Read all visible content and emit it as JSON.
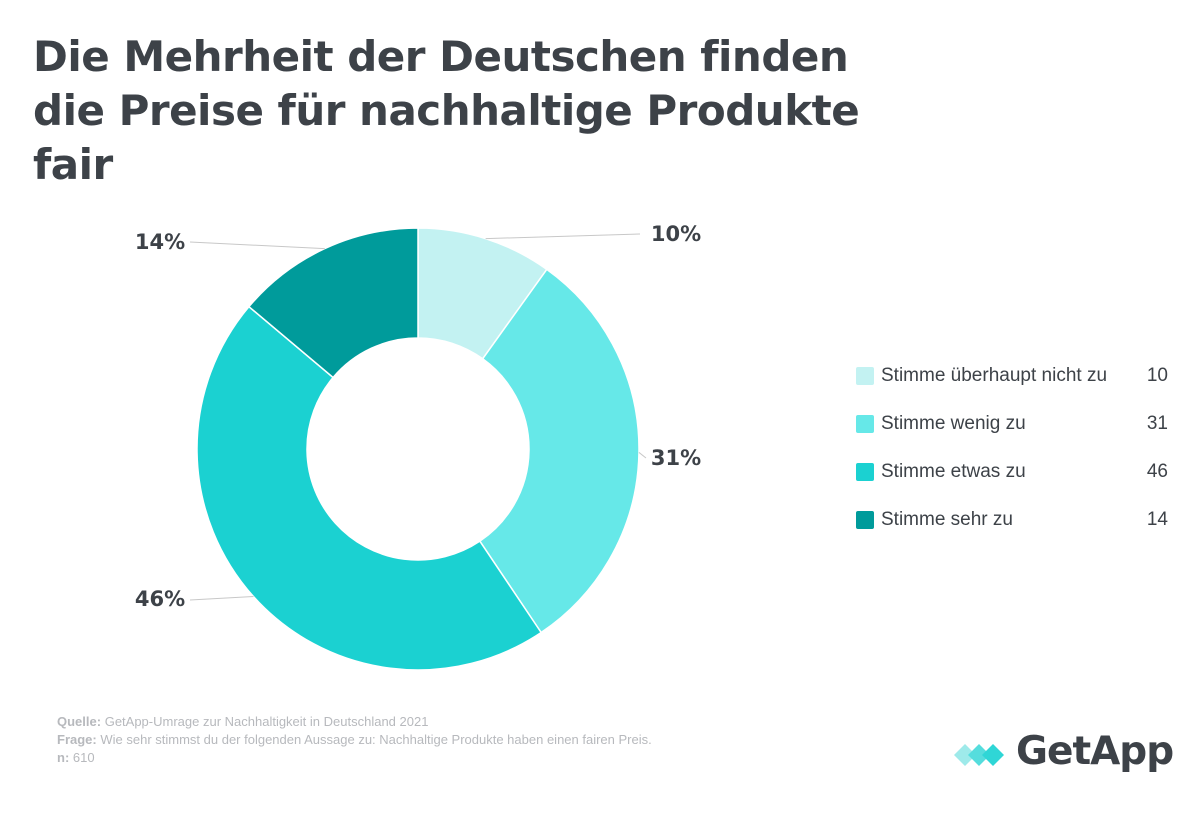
{
  "title": "Die Mehrheit der Deutschen finden die Preise für nachhaltige Produkte fair",
  "chart_data": {
    "type": "donut",
    "title": "Die Mehrheit der Deutschen finden die Preise für nachhaltige Produkte fair",
    "unit": "%",
    "series": [
      {
        "name": "Stimme überhaupt nicht zu",
        "value": 10,
        "label": "10%",
        "color": "#c3f2f2"
      },
      {
        "name": "Stimme wenig zu",
        "value": 31,
        "label": "31%",
        "color": "#66e8e8"
      },
      {
        "name": "Stimme etwas zu",
        "value": 46,
        "label": "46%",
        "color": "#1bd1d1"
      },
      {
        "name": "Stimme sehr zu",
        "value": 14,
        "label": "14%",
        "color": "#009b9b"
      }
    ],
    "legend_position": "right"
  },
  "footer": {
    "source_key": "Quelle:",
    "source_text": "GetApp-Umrage zur Nachhaltigkeit in Deutschland 2021",
    "question_key": "Frage:",
    "question_text": "Wie sehr stimmst du der folgenden Aussage zu: Nachhaltige Produkte haben einen fairen Preis.",
    "n_key": "n:",
    "n_text": "610"
  },
  "logo": {
    "text": "GetApp",
    "colors": [
      "#3d4248",
      "#2fd6d6"
    ]
  }
}
